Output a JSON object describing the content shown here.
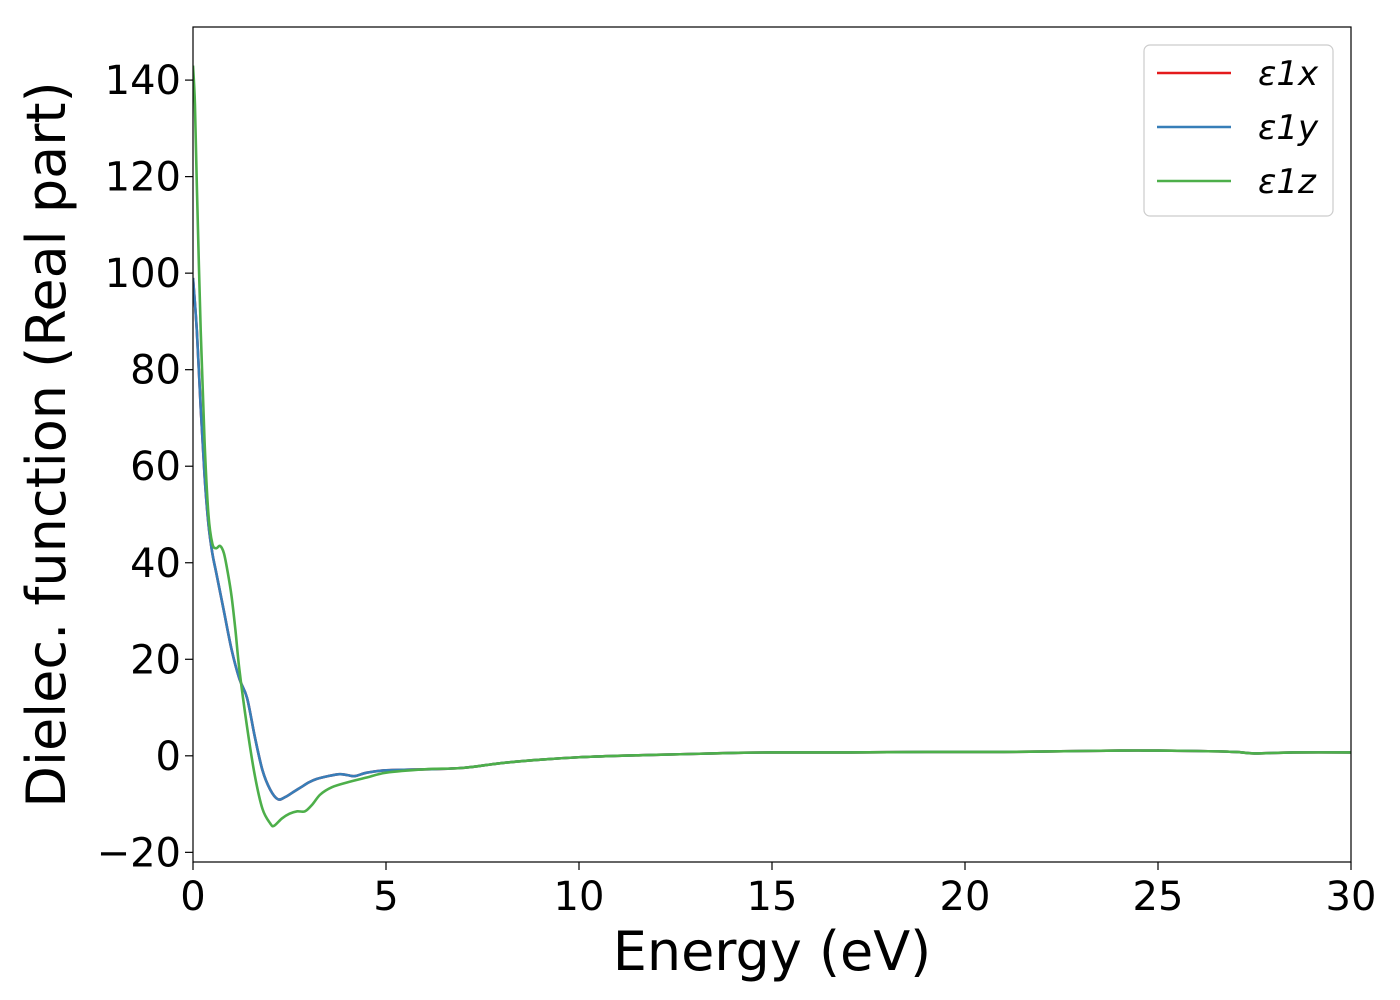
{
  "chart_data": {
    "type": "line",
    "xlabel": "Energy (eV)",
    "ylabel": "Dielec. function (Real part)",
    "xlim": [
      0,
      30
    ],
    "ylim": [
      -22,
      151
    ],
    "xticks": [
      0,
      5,
      10,
      15,
      20,
      25,
      30
    ],
    "xtick_labels": [
      "0",
      "5",
      "10",
      "15",
      "20",
      "25",
      "30"
    ],
    "yticks": [
      -20,
      0,
      20,
      40,
      60,
      80,
      100,
      120,
      140
    ],
    "ytick_labels": [
      "−20",
      "0",
      "20",
      "40",
      "60",
      "80",
      "100",
      "120",
      "140"
    ],
    "grid": false,
    "legend_position": "top-right",
    "series": [
      {
        "name": "ε1x",
        "color": "#e41a1c",
        "x": [
          0,
          0.1,
          0.2,
          0.3,
          0.4,
          0.5,
          0.6,
          0.8,
          1.0,
          1.2,
          1.4,
          1.6,
          1.8,
          2.0,
          2.2,
          2.4,
          2.6,
          2.8,
          3.0,
          3.2,
          3.5,
          3.8,
          4.0,
          4.2,
          4.5,
          5.0,
          6.0,
          7.0,
          8.0,
          9.0,
          10.0,
          11.0,
          12.0,
          13.0,
          14.0,
          15.0,
          17.0,
          19.0,
          21.0,
          23.0,
          24.5,
          26.0,
          27.0,
          27.5,
          28.5,
          30.0
        ],
        "y": [
          99,
          88,
          72,
          58,
          48,
          42,
          38,
          30,
          22,
          16,
          12,
          4,
          -3,
          -7,
          -9,
          -8.5,
          -7.5,
          -6.5,
          -5.5,
          -4.8,
          -4.2,
          -3.8,
          -4,
          -4.2,
          -3.5,
          -3,
          -2.8,
          -2.5,
          -1.5,
          -0.8,
          -0.3,
          0,
          0.2,
          0.4,
          0.6,
          0.7,
          0.7,
          0.8,
          0.8,
          1,
          1.1,
          1,
          0.8,
          0.5,
          0.7,
          0.7
        ]
      },
      {
        "name": "ε1y",
        "color": "#377eb8",
        "x": [
          0,
          0.1,
          0.2,
          0.3,
          0.4,
          0.5,
          0.6,
          0.8,
          1.0,
          1.2,
          1.4,
          1.6,
          1.8,
          2.0,
          2.2,
          2.4,
          2.6,
          2.8,
          3.0,
          3.2,
          3.5,
          3.8,
          4.0,
          4.2,
          4.5,
          5.0,
          6.0,
          7.0,
          8.0,
          9.0,
          10.0,
          11.0,
          12.0,
          13.0,
          14.0,
          15.0,
          17.0,
          19.0,
          21.0,
          23.0,
          24.5,
          26.0,
          27.0,
          27.5,
          28.5,
          30.0
        ],
        "y": [
          99,
          88,
          72,
          58,
          48,
          42,
          38,
          30,
          22,
          16,
          12,
          4,
          -3,
          -7,
          -9,
          -8.5,
          -7.5,
          -6.5,
          -5.5,
          -4.8,
          -4.2,
          -3.8,
          -4,
          -4.2,
          -3.5,
          -3,
          -2.8,
          -2.5,
          -1.5,
          -0.8,
          -0.3,
          0,
          0.2,
          0.4,
          0.6,
          0.7,
          0.7,
          0.8,
          0.8,
          1,
          1.1,
          1,
          0.8,
          0.5,
          0.7,
          0.7
        ]
      },
      {
        "name": "ε1z",
        "color": "#4daf4a",
        "x": [
          0,
          0.05,
          0.1,
          0.2,
          0.3,
          0.4,
          0.5,
          0.6,
          0.7,
          0.8,
          0.9,
          1.0,
          1.1,
          1.2,
          1.4,
          1.6,
          1.8,
          2.0,
          2.1,
          2.3,
          2.5,
          2.7,
          2.9,
          3.1,
          3.3,
          3.6,
          4.0,
          4.5,
          5.0,
          6.0,
          7.0,
          8.0,
          9.0,
          10.0,
          11.0,
          12.0,
          13.0,
          14.0,
          15.0,
          17.0,
          19.0,
          21.0,
          23.0,
          24.5,
          26.0,
          27.0,
          27.5,
          28.5,
          30.0
        ],
        "y": [
          143,
          135,
          118,
          88,
          65,
          50,
          44,
          43,
          43.5,
          42,
          38,
          33,
          26,
          18,
          6,
          -4,
          -11,
          -14,
          -14.5,
          -13,
          -12,
          -11.5,
          -11.5,
          -10,
          -8,
          -6.5,
          -5.5,
          -4.5,
          -3.5,
          -2.8,
          -2.5,
          -1.5,
          -0.8,
          -0.3,
          0,
          0.2,
          0.4,
          0.6,
          0.7,
          0.7,
          0.8,
          0.8,
          1,
          1.1,
          1,
          0.8,
          0.5,
          0.7,
          0.7
        ]
      }
    ]
  }
}
